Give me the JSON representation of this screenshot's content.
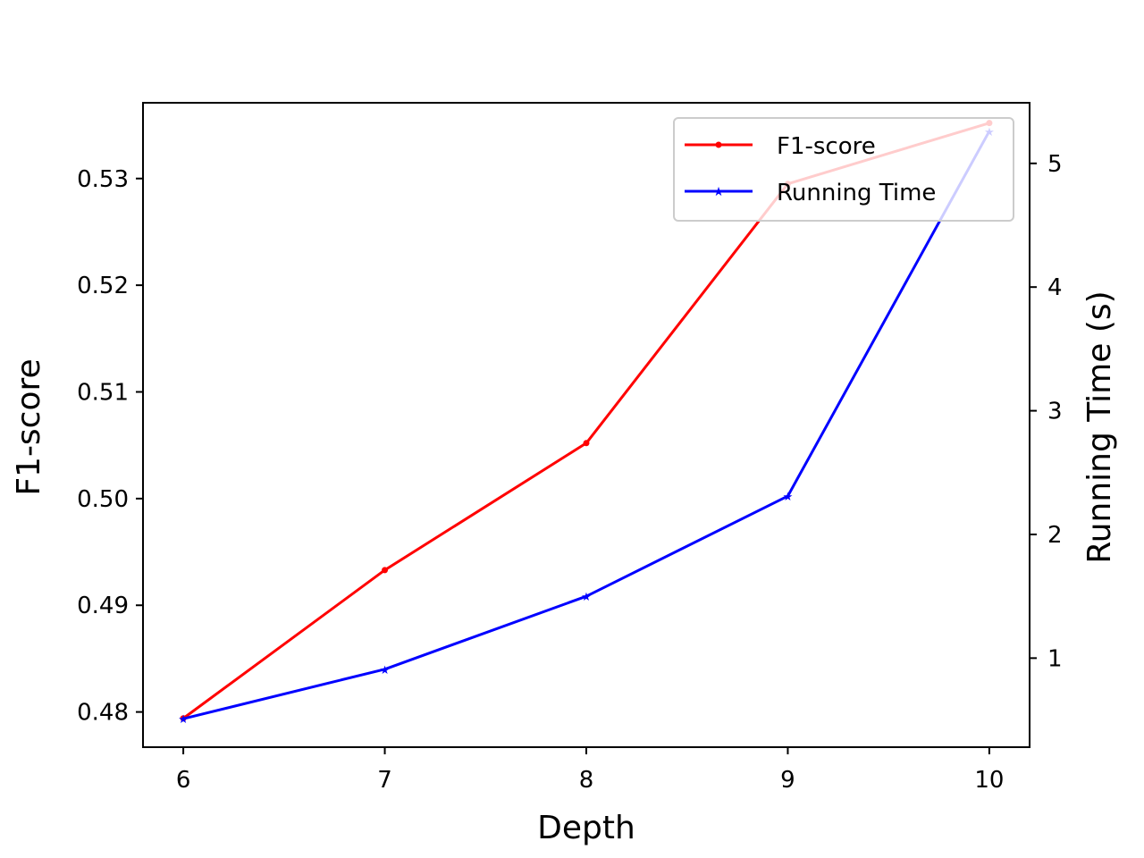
{
  "chart_data": {
    "type": "line",
    "x": [
      6,
      7,
      8,
      9,
      10
    ],
    "xlabel": "Depth",
    "xlim": [
      5.8,
      10.2
    ],
    "xticks": [
      6,
      7,
      8,
      9,
      10
    ],
    "y_left": {
      "label": "F1-score",
      "lim": [
        0.4767,
        0.5371
      ],
      "ticks": [
        "0.48",
        "0.49",
        "0.50",
        "0.51",
        "0.52",
        "0.53"
      ]
    },
    "y_right": {
      "label": "Running Time (s)",
      "lim": [
        0.28,
        5.49
      ],
      "ticks": [
        "1",
        "2",
        "3",
        "4",
        "5"
      ]
    },
    "series": [
      {
        "name": "F1-score",
        "axis": "left",
        "color": "#ff0000",
        "marker": "circle",
        "values": [
          0.4794,
          0.4933,
          0.5052,
          0.5295,
          0.5352
        ]
      },
      {
        "name": "Running Time",
        "axis": "right",
        "color": "#0000ff",
        "marker": "star",
        "values": [
          0.51,
          0.91,
          1.5,
          2.31,
          5.26
        ]
      }
    ],
    "legend": {
      "position": "top-right",
      "entries": [
        "F1-score",
        "Running Time"
      ]
    },
    "grid": false
  }
}
